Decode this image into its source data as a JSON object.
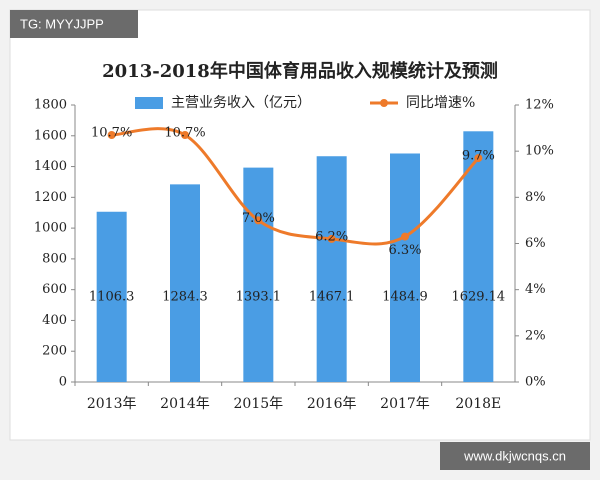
{
  "overlay": {
    "top_left": "TG: MYYJJPP",
    "bottom_right": "www.dkjwcnqs.cn"
  },
  "chart_data": {
    "type": "bar",
    "title": "2013-2018年中国体育用品收入规模统计及预测",
    "categories": [
      "2013年",
      "2014年",
      "2015年",
      "2016年",
      "2017年",
      "2018E"
    ],
    "series": [
      {
        "name": "主营业务收入（亿元）",
        "type": "bar",
        "color": "#4a9de4",
        "values": [
          1106.3,
          1284.3,
          1393.1,
          1467.1,
          1484.9,
          1629.14
        ]
      },
      {
        "name": "同比增速%",
        "type": "line",
        "axis": "y2",
        "color": "#ee7a2a",
        "values": [
          10.7,
          10.7,
          7.0,
          6.2,
          6.3,
          9.7
        ],
        "value_labels": [
          "10.7%",
          "10.7%",
          "7.0%",
          "6.2%",
          "6.3%",
          "9.7%"
        ]
      }
    ],
    "ylim": [
      0,
      1800
    ],
    "yticks": [
      0,
      200,
      400,
      600,
      800,
      1000,
      1200,
      1400,
      1600,
      1800
    ],
    "y2lim": [
      0,
      12
    ],
    "y2ticks": [
      {
        "value": 0,
        "label": "0%"
      },
      {
        "value": 2,
        "label": "2%"
      },
      {
        "value": 4,
        "label": "4%"
      },
      {
        "value": 6,
        "label": "6%"
      },
      {
        "value": 8,
        "label": "8%"
      },
      {
        "value": 10,
        "label": "10%"
      },
      {
        "value": 12,
        "label": "12%"
      }
    ],
    "grid": false,
    "legend": "top"
  }
}
